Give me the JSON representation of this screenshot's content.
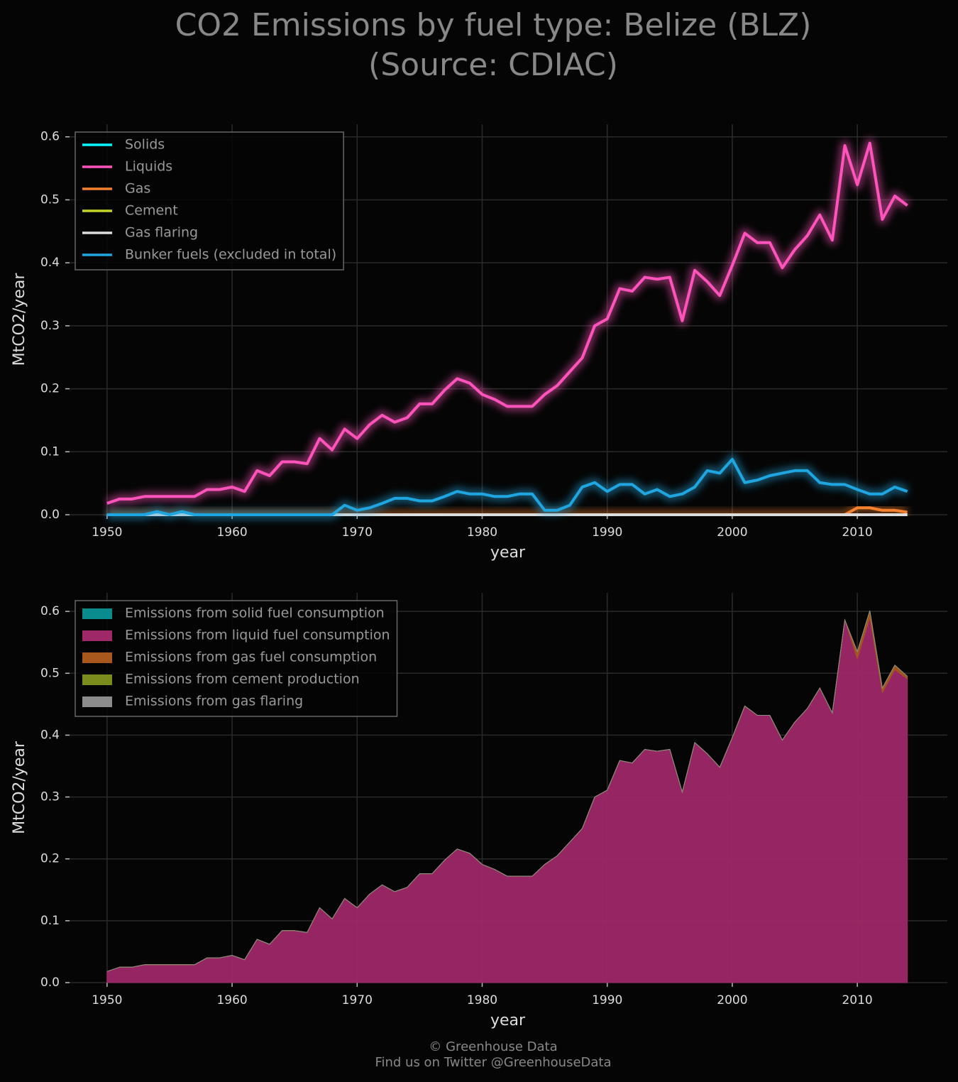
{
  "title": "CO2 Emissions by fuel type: Belize (BLZ)",
  "subtitle": "(Source: CDIAC)",
  "credits": [
    "© Greenhouse Data",
    "Find us on Twitter @GreenhouseData"
  ],
  "chart_data": [
    {
      "type": "line",
      "xlabel": "year",
      "ylabel": "MtCO2/year",
      "x": [
        1950,
        1951,
        1952,
        1953,
        1954,
        1955,
        1956,
        1957,
        1958,
        1959,
        1960,
        1961,
        1962,
        1963,
        1964,
        1965,
        1966,
        1967,
        1968,
        1969,
        1970,
        1971,
        1972,
        1973,
        1974,
        1975,
        1976,
        1977,
        1978,
        1979,
        1980,
        1981,
        1982,
        1983,
        1984,
        1985,
        1986,
        1987,
        1988,
        1989,
        1990,
        1991,
        1992,
        1993,
        1994,
        1995,
        1996,
        1997,
        1998,
        1999,
        2000,
        2001,
        2002,
        2003,
        2004,
        2005,
        2006,
        2007,
        2008,
        2009,
        2010,
        2011,
        2012,
        2013,
        2014
      ],
      "xlim": [
        1947,
        2017.2
      ],
      "xticks": [
        1950,
        1960,
        1970,
        1980,
        1990,
        2000,
        2010
      ],
      "ylim": [
        0,
        0.62
      ],
      "yticks": [
        {
          "value": 0,
          "label": "0.0"
        },
        0.1,
        0.2,
        0.3,
        0.4,
        0.5,
        0.6
      ],
      "grid": true,
      "legend": "upper left",
      "series": [
        {
          "name": "Solids",
          "color": "#08f7fe",
          "values": [
            0,
            0,
            0,
            0,
            0,
            0,
            0,
            0,
            0,
            0,
            0,
            0,
            0,
            0,
            0,
            0,
            0,
            0,
            0,
            0,
            0,
            0,
            0,
            0,
            0,
            0,
            0,
            0,
            0,
            0,
            0,
            0,
            0,
            0,
            0,
            0,
            0,
            0,
            0,
            0,
            0,
            0,
            0,
            0,
            0,
            0,
            0,
            0,
            0,
            0,
            0,
            0,
            0,
            0,
            0,
            0,
            0,
            0,
            0,
            0,
            0,
            0,
            0,
            0,
            0
          ]
        },
        {
          "name": "Liquids",
          "color": "#fe53bb",
          "values": [
            0.018,
            0.025,
            0.025,
            0.029,
            0.029,
            0.029,
            0.029,
            0.029,
            0.04,
            0.04,
            0.044,
            0.037,
            0.07,
            0.062,
            0.084,
            0.084,
            0.081,
            0.121,
            0.103,
            0.136,
            0.121,
            0.143,
            0.158,
            0.147,
            0.154,
            0.176,
            0.176,
            0.198,
            0.216,
            0.209,
            0.191,
            0.183,
            0.172,
            0.172,
            0.172,
            0.191,
            0.205,
            0.227,
            0.249,
            0.3,
            0.311,
            0.359,
            0.355,
            0.377,
            0.374,
            0.377,
            0.308,
            0.388,
            0.37,
            0.348,
            0.396,
            0.447,
            0.432,
            0.432,
            0.392,
            0.421,
            0.443,
            0.476,
            0.436,
            0.586,
            0.524,
            0.59,
            0.469,
            0.506,
            0.491
          ]
        },
        {
          "name": "Gas",
          "color": "#f5812f",
          "values": [
            0,
            0,
            0,
            0,
            0,
            0,
            0,
            0,
            0,
            0,
            0,
            0,
            0,
            0,
            0,
            0,
            0,
            0,
            0,
            0,
            0,
            0,
            0,
            0,
            0,
            0,
            0,
            0,
            0,
            0,
            0,
            0,
            0,
            0,
            0,
            0,
            0,
            0,
            0,
            0,
            0,
            0,
            0,
            0,
            0,
            0,
            0,
            0,
            0,
            0,
            0,
            0,
            0,
            0,
            0,
            0,
            0,
            0,
            0,
            0,
            0.011,
            0.011,
            0.007,
            0.007,
            0.004
          ]
        },
        {
          "name": "Cement",
          "color": "#c5d42a",
          "values": [
            0,
            0,
            0,
            0,
            0,
            0,
            0,
            0,
            0,
            0,
            0,
            0,
            0,
            0,
            0,
            0,
            0,
            0,
            0,
            0,
            0,
            0,
            0,
            0,
            0,
            0,
            0,
            0,
            0,
            0,
            0,
            0,
            0,
            0,
            0,
            0,
            0,
            0,
            0,
            0,
            0,
            0,
            0,
            0,
            0,
            0,
            0,
            0,
            0,
            0,
            0,
            0,
            0,
            0,
            0,
            0,
            0,
            0,
            0,
            0,
            0,
            0,
            0,
            0,
            0
          ]
        },
        {
          "name": "Gas flaring",
          "color": "#dddddd",
          "values": [
            0,
            0,
            0,
            0,
            0,
            0,
            0,
            0,
            0,
            0,
            0,
            0,
            0,
            0,
            0,
            0,
            0,
            0,
            0,
            0,
            0,
            0,
            0,
            0,
            0,
            0,
            0,
            0,
            0,
            0,
            0,
            0,
            0,
            0,
            0,
            0,
            0,
            0,
            0,
            0,
            0,
            0,
            0,
            0,
            0,
            0,
            0,
            0,
            0,
            0,
            0,
            0,
            0,
            0,
            0,
            0,
            0,
            0,
            0,
            0,
            0,
            0,
            0,
            0,
            0
          ]
        },
        {
          "name": "Bunker fuels (excluded in total)",
          "color": "#1fa6e0",
          "values": [
            0,
            0,
            0,
            0,
            0.005,
            0,
            0.005,
            0,
            0,
            0,
            0,
            0,
            0,
            0,
            0,
            0,
            0,
            0,
            0,
            0.015,
            0.007,
            0.011,
            0.018,
            0.026,
            0.026,
            0.022,
            0.022,
            0.029,
            0.037,
            0.033,
            0.033,
            0.029,
            0.029,
            0.033,
            0.033,
            0.007,
            0.007,
            0.015,
            0.044,
            0.051,
            0.037,
            0.048,
            0.048,
            0.033,
            0.04,
            0.029,
            0.033,
            0.044,
            0.07,
            0.066,
            0.088,
            0.051,
            0.055,
            0.062,
            0.066,
            0.07,
            0.07,
            0.051,
            0.048,
            0.048,
            0.04,
            0.033,
            0.033,
            0.044,
            0.037
          ]
        }
      ]
    },
    {
      "type": "stacked_area",
      "xlabel": "year",
      "ylabel": "MtCO2/year",
      "x": [
        1950,
        1951,
        1952,
        1953,
        1954,
        1955,
        1956,
        1957,
        1958,
        1959,
        1960,
        1961,
        1962,
        1963,
        1964,
        1965,
        1966,
        1967,
        1968,
        1969,
        1970,
        1971,
        1972,
        1973,
        1974,
        1975,
        1976,
        1977,
        1978,
        1979,
        1980,
        1981,
        1982,
        1983,
        1984,
        1985,
        1986,
        1987,
        1988,
        1989,
        1990,
        1991,
        1992,
        1993,
        1994,
        1995,
        1996,
        1997,
        1998,
        1999,
        2000,
        2001,
        2002,
        2003,
        2004,
        2005,
        2006,
        2007,
        2008,
        2009,
        2010,
        2011,
        2012,
        2013,
        2014
      ],
      "xlim": [
        1947,
        2017.2
      ],
      "xticks": [
        1950,
        1960,
        1970,
        1980,
        1990,
        2000,
        2010
      ],
      "ylim": [
        0,
        0.63
      ],
      "yticks": [
        {
          "value": 0,
          "label": "0.0"
        },
        0.1,
        0.2,
        0.3,
        0.4,
        0.5,
        0.6
      ],
      "grid": true,
      "legend": "upper left",
      "series": [
        {
          "name": "Emissions from solid fuel consumption",
          "color": "#0a8c8e",
          "values": [
            0,
            0,
            0,
            0,
            0,
            0,
            0,
            0,
            0,
            0,
            0,
            0,
            0,
            0,
            0,
            0,
            0,
            0,
            0,
            0,
            0,
            0,
            0,
            0,
            0,
            0,
            0,
            0,
            0,
            0,
            0,
            0,
            0,
            0,
            0,
            0,
            0,
            0,
            0,
            0,
            0,
            0,
            0,
            0,
            0,
            0,
            0,
            0,
            0,
            0,
            0,
            0,
            0,
            0,
            0,
            0,
            0,
            0,
            0,
            0,
            0,
            0,
            0,
            0,
            0
          ]
        },
        {
          "name": "Emissions from liquid fuel consumption",
          "color": "#9e2868",
          "values": [
            0.018,
            0.025,
            0.025,
            0.029,
            0.029,
            0.029,
            0.029,
            0.029,
            0.04,
            0.04,
            0.044,
            0.037,
            0.07,
            0.062,
            0.084,
            0.084,
            0.081,
            0.121,
            0.103,
            0.136,
            0.121,
            0.143,
            0.158,
            0.147,
            0.154,
            0.176,
            0.176,
            0.198,
            0.216,
            0.209,
            0.191,
            0.183,
            0.172,
            0.172,
            0.172,
            0.191,
            0.205,
            0.227,
            0.249,
            0.3,
            0.311,
            0.359,
            0.355,
            0.377,
            0.374,
            0.377,
            0.308,
            0.388,
            0.37,
            0.348,
            0.396,
            0.447,
            0.432,
            0.432,
            0.392,
            0.421,
            0.443,
            0.476,
            0.436,
            0.586,
            0.524,
            0.59,
            0.469,
            0.506,
            0.491
          ]
        },
        {
          "name": "Emissions from gas fuel consumption",
          "color": "#a8581c",
          "values": [
            0,
            0,
            0,
            0,
            0,
            0,
            0,
            0,
            0,
            0,
            0,
            0,
            0,
            0,
            0,
            0,
            0,
            0,
            0,
            0,
            0,
            0,
            0,
            0,
            0,
            0,
            0,
            0,
            0,
            0,
            0,
            0,
            0,
            0,
            0,
            0,
            0,
            0,
            0,
            0,
            0,
            0,
            0,
            0,
            0,
            0,
            0,
            0,
            0,
            0,
            0,
            0,
            0,
            0,
            0,
            0,
            0,
            0,
            0,
            0,
            0.011,
            0.011,
            0.007,
            0.007,
            0.004
          ]
        },
        {
          "name": "Emissions from cement production",
          "color": "#7c8c1c",
          "values": [
            0,
            0,
            0,
            0,
            0,
            0,
            0,
            0,
            0,
            0,
            0,
            0,
            0,
            0,
            0,
            0,
            0,
            0,
            0,
            0,
            0,
            0,
            0,
            0,
            0,
            0,
            0,
            0,
            0,
            0,
            0,
            0,
            0,
            0,
            0,
            0,
            0,
            0,
            0,
            0,
            0,
            0,
            0,
            0,
            0,
            0,
            0,
            0,
            0,
            0,
            0,
            0,
            0,
            0,
            0,
            0,
            0,
            0,
            0,
            0,
            0,
            0,
            0,
            0,
            0
          ]
        },
        {
          "name": "Emissions from gas flaring",
          "color": "#8c8c8c",
          "values": [
            0,
            0,
            0,
            0,
            0,
            0,
            0,
            0,
            0,
            0,
            0,
            0,
            0,
            0,
            0,
            0,
            0,
            0,
            0,
            0,
            0,
            0,
            0,
            0,
            0,
            0,
            0,
            0,
            0,
            0,
            0,
            0,
            0,
            0,
            0,
            0,
            0,
            0,
            0,
            0,
            0,
            0,
            0,
            0,
            0,
            0,
            0,
            0,
            0,
            0,
            0,
            0,
            0,
            0,
            0,
            0,
            0,
            0,
            0,
            0,
            0,
            0,
            0,
            0,
            0
          ]
        }
      ]
    }
  ]
}
